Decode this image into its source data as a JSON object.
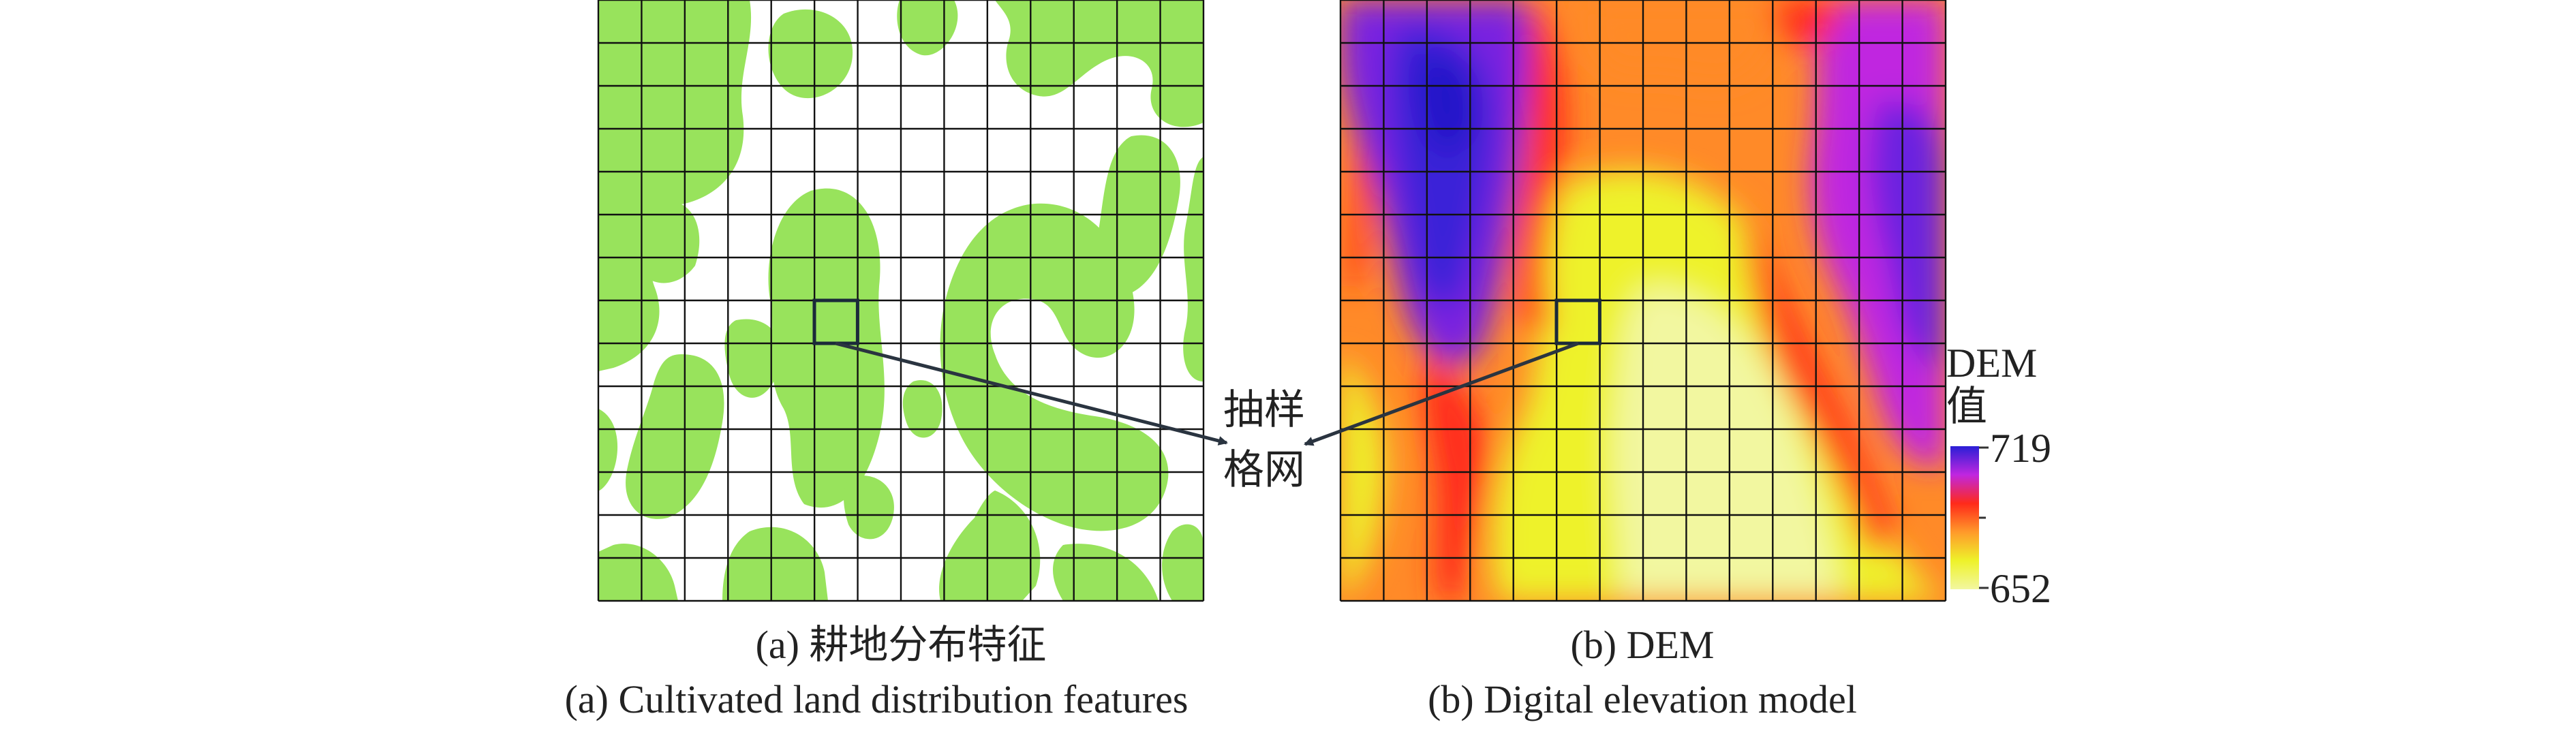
{
  "panel_a": {
    "caption_cn": "(a) 耕地分布特征",
    "caption_en": "(a) Cultivated land distribution features",
    "land_color": "#98e35c"
  },
  "panel_b": {
    "caption_cn": "(b) DEM",
    "caption_en": "(b) Digital elevation model",
    "colorbar": {
      "title_line1": "DEM",
      "title_line2": "值",
      "max_label": "719",
      "min_label": "652",
      "max_value": 719,
      "min_value": 652,
      "colors": [
        "#2a1fd6",
        "#c026e0",
        "#ff2a1a",
        "#ff9a2a",
        "#eef22a",
        "#f2f7a0"
      ]
    }
  },
  "annotation": {
    "line1": "抽样",
    "line2": "格网"
  },
  "grid": {
    "rows": 14,
    "cols": 14
  }
}
